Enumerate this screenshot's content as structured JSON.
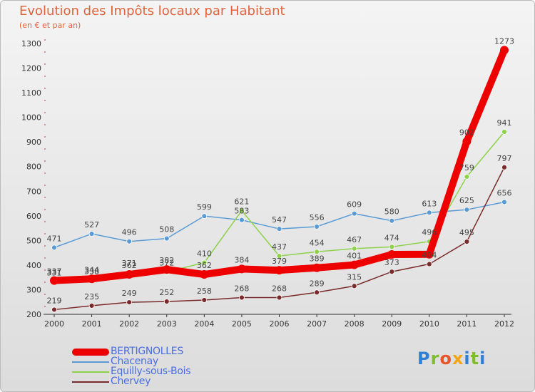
{
  "header": {
    "title": "Evolution des Impôts locaux par Habitant",
    "subtitle": "(en € et par an)"
  },
  "logo": {
    "text": "Proxiti",
    "letters": [
      "P",
      "r",
      "o",
      "x",
      "i",
      "t",
      "i"
    ]
  },
  "chart_data": {
    "type": "line",
    "title": "Evolution des Impôts locaux par Habitant",
    "subtitle": "(en € et par an)",
    "x": [
      "2000",
      "2001",
      "2002",
      "2003",
      "2004",
      "2005",
      "2006",
      "2007",
      "2008",
      "2009",
      "2010",
      "2011",
      "2012"
    ],
    "ylim": [
      200,
      1300
    ],
    "yticks": [
      200,
      300,
      400,
      500,
      600,
      700,
      800,
      900,
      1000,
      1100,
      1200,
      1300
    ],
    "grid": false,
    "legend": "bottom-left",
    "series": [
      {
        "name": "BERTIGNOLLES",
        "color": "#ee0000",
        "values": [
          337,
          344,
          362,
          382,
          362,
          384,
          379,
          389,
          401,
          443,
          444,
          902,
          1273
        ],
        "labels": [
          "337",
          "344",
          "362",
          "382",
          "362",
          "384",
          "379",
          "389",
          "401",
          "",
          "",
          "902",
          "1273"
        ]
      },
      {
        "name": "Chacenay",
        "color": "#5b9bd5",
        "values": [
          471,
          527,
          496,
          508,
          599,
          583,
          547,
          556,
          609,
          580,
          613,
          625,
          656
        ],
        "labels": [
          "471",
          "527",
          "496",
          "508",
          "599",
          "583",
          "547",
          "556",
          "609",
          "580",
          "613",
          "625",
          "656"
        ]
      },
      {
        "name": "Equilly-sous-Bois",
        "color": "#8ed14b",
        "values": [
          331,
          338,
          371,
          372,
          410,
          621,
          437,
          454,
          467,
          474,
          496,
          759,
          941
        ],
        "labels": [
          "331",
          "338",
          "371",
          "372",
          "410",
          "621",
          "437",
          "454",
          "467",
          "474",
          "496",
          "759",
          "941"
        ]
      },
      {
        "name": "Chervey",
        "color": "#7a2a2a",
        "values": [
          219,
          235,
          249,
          252,
          258,
          268,
          268,
          289,
          315,
          373,
          404,
          495,
          797
        ],
        "labels": [
          "219",
          "235",
          "249",
          "252",
          "258",
          "268",
          "268",
          "289",
          "315",
          "373",
          "404",
          "495",
          "797"
        ]
      }
    ]
  }
}
